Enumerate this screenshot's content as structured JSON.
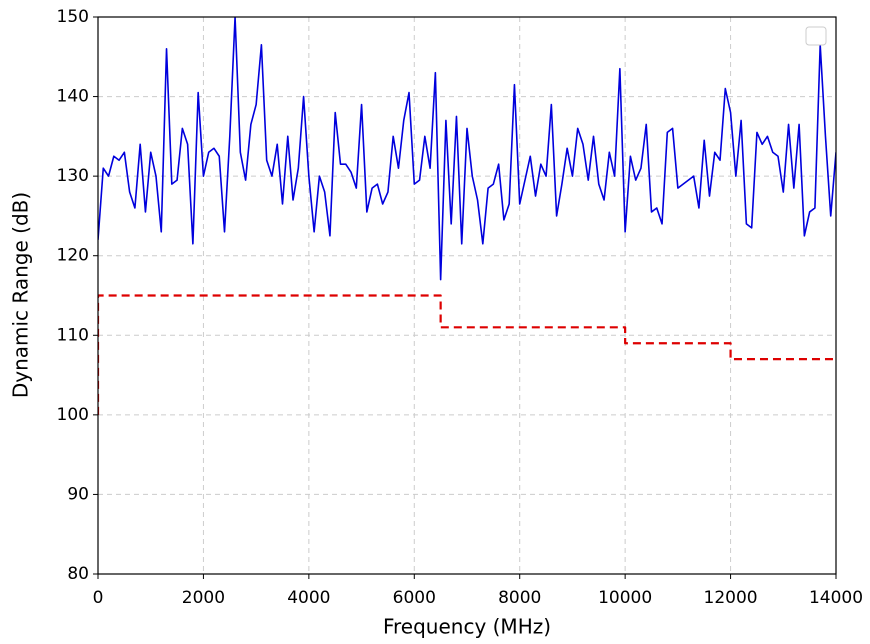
{
  "chart_data": {
    "type": "line",
    "xlabel": "Frequency (MHz)",
    "ylabel": "Dynamic Range (dB)",
    "xlim": [
      0,
      14000
    ],
    "ylim": [
      80,
      150
    ],
    "xticks": [
      0,
      2000,
      4000,
      6000,
      8000,
      10000,
      12000,
      14000
    ],
    "yticks": [
      80,
      90,
      100,
      110,
      120,
      130,
      140,
      150
    ],
    "grid": true,
    "legend": "upper right",
    "series": [
      {
        "color": "#0000dd",
        "style": "solid",
        "x": [
          0,
          100,
          200,
          300,
          400,
          500,
          600,
          700,
          800,
          900,
          1000,
          1100,
          1200,
          1300,
          1400,
          1500,
          1600,
          1700,
          1800,
          1900,
          2000,
          2100,
          2200,
          2300,
          2400,
          2500,
          2600,
          2700,
          2800,
          2900,
          3000,
          3100,
          3200,
          3300,
          3400,
          3500,
          3600,
          3700,
          3800,
          3900,
          4000,
          4100,
          4200,
          4300,
          4400,
          4500,
          4600,
          4700,
          4800,
          4900,
          5000,
          5100,
          5200,
          5300,
          5400,
          5500,
          5600,
          5700,
          5800,
          5900,
          6000,
          6100,
          6200,
          6300,
          6400,
          6500,
          6600,
          6700,
          6800,
          6900,
          7000,
          7100,
          7200,
          7300,
          7400,
          7500,
          7600,
          7700,
          7800,
          7900,
          8000,
          8100,
          8200,
          8300,
          8400,
          8500,
          8600,
          8700,
          8800,
          8900,
          9000,
          9100,
          9200,
          9300,
          9400,
          9500,
          9600,
          9700,
          9800,
          9900,
          10000,
          10100,
          10200,
          10300,
          10400,
          10500,
          10600,
          10700,
          10800,
          10900,
          11000,
          11100,
          11200,
          11300,
          11400,
          11500,
          11600,
          11700,
          11800,
          11900,
          12000,
          12100,
          12200,
          12300,
          12400,
          12500,
          12600,
          12700,
          12800,
          12900,
          13000,
          13100,
          13200,
          13300,
          13400,
          13500,
          13600,
          13700,
          13800,
          13900,
          14000
        ],
        "values": [
          122,
          131,
          130,
          132.5,
          132,
          133,
          128,
          126,
          134,
          125.5,
          133,
          130,
          123,
          146,
          129,
          129.5,
          136,
          134,
          121.5,
          140.5,
          130,
          133,
          133.5,
          132.5,
          123,
          135,
          150,
          133,
          129.5,
          136.5,
          139,
          146.5,
          132,
          130,
          134,
          126.5,
          135,
          127,
          131,
          140,
          130,
          123,
          130,
          128,
          122.5,
          138,
          131.5,
          131.5,
          130.5,
          128.5,
          139,
          125.5,
          128.5,
          129,
          126.5,
          128,
          135,
          131,
          137,
          140.5,
          129,
          129.5,
          135,
          131,
          143,
          117,
          137,
          124,
          137.5,
          121.5,
          136,
          130,
          127,
          121.5,
          128.5,
          129,
          131.5,
          124.5,
          126.5,
          141.5,
          126.5,
          129.5,
          132.5,
          127.5,
          131.5,
          130,
          139,
          125,
          129,
          133.5,
          130,
          136,
          134,
          129.5,
          135,
          129,
          127,
          133,
          130,
          143.5,
          123,
          132.5,
          129.5,
          131,
          136.5,
          125.5,
          126,
          124,
          135.5,
          136,
          128.5,
          129,
          129.5,
          130,
          126,
          134.5,
          127.5,
          133,
          132,
          141,
          138,
          130,
          137,
          124,
          123.5,
          135.5,
          134,
          135,
          133,
          132.5,
          128,
          136.5,
          128.5,
          136.5,
          122.5,
          125.5,
          126,
          146.5,
          135,
          125,
          133
        ]
      },
      {
        "color": "#dd0000",
        "style": "dashed",
        "x": [
          0,
          0,
          6500,
          6500,
          10000,
          10000,
          12000,
          12000,
          14000
        ],
        "values": [
          100,
          115,
          115,
          111,
          111,
          109,
          109,
          107,
          107
        ]
      }
    ]
  }
}
